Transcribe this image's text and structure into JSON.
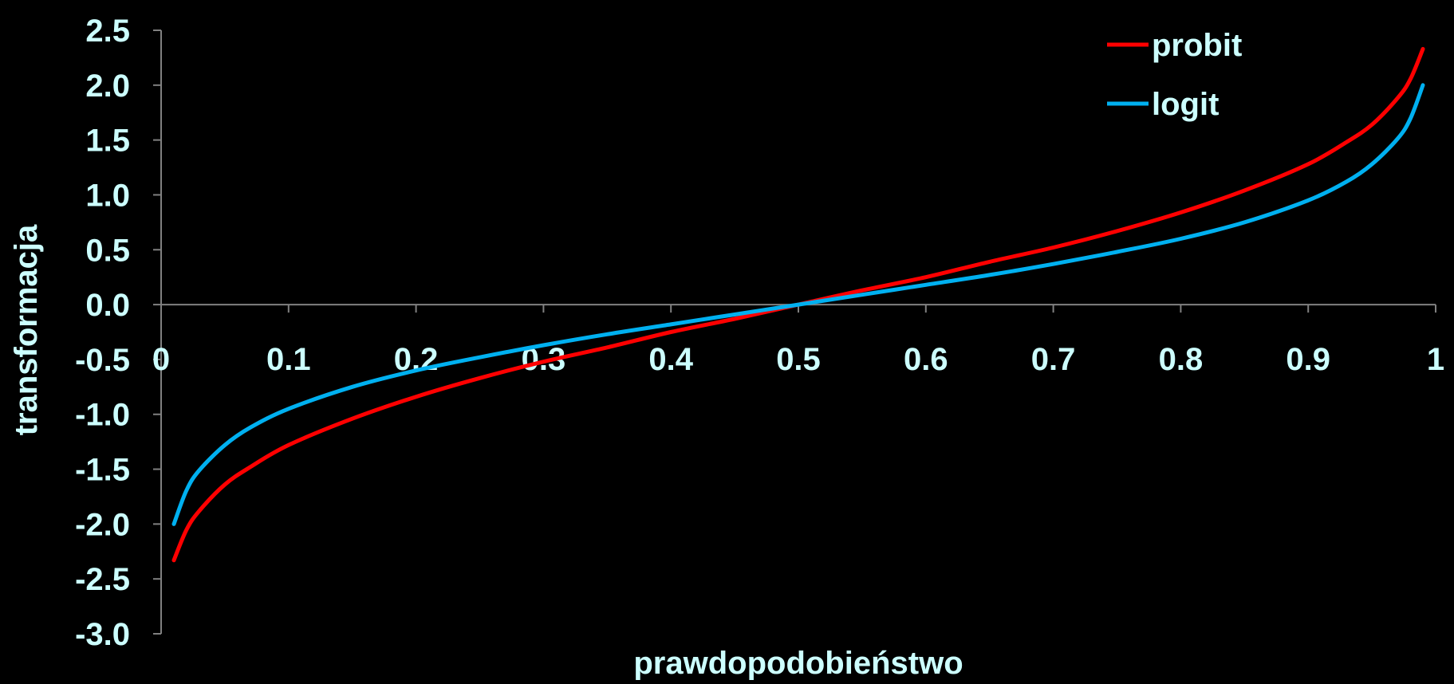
{
  "chart_data": {
    "type": "line",
    "title": "",
    "xlabel": "prawdopodobieństwo",
    "ylabel": "transformacja",
    "xlim": [
      0,
      1
    ],
    "ylim": [
      -3.0,
      2.5
    ],
    "x_ticks": [
      "0",
      "0.1",
      "0.2",
      "0.3",
      "0.4",
      "0.5",
      "0.6",
      "0.7",
      "0.8",
      "0.9",
      "1"
    ],
    "y_ticks": [
      "2.5",
      "2.0",
      "1.5",
      "1.0",
      "0.5",
      "0.0",
      "-0.5",
      "-1.0",
      "-1.5",
      "-2.0",
      "-2.5",
      "-3.0"
    ],
    "grid": false,
    "legend_position": "top-right",
    "x": [
      0.01,
      0.02,
      0.03,
      0.05,
      0.07,
      0.1,
      0.15,
      0.2,
      0.25,
      0.3,
      0.35,
      0.4,
      0.45,
      0.5,
      0.55,
      0.6,
      0.65,
      0.7,
      0.75,
      0.8,
      0.85,
      0.9,
      0.93,
      0.95,
      0.97,
      0.98,
      0.99
    ],
    "series": [
      {
        "name": "probit",
        "color": "#ff0000",
        "values": [
          -2.33,
          -2.05,
          -1.88,
          -1.64,
          -1.48,
          -1.28,
          -1.04,
          -0.84,
          -0.67,
          -0.52,
          -0.39,
          -0.25,
          -0.13,
          0.0,
          0.13,
          0.25,
          0.39,
          0.52,
          0.67,
          0.84,
          1.04,
          1.28,
          1.48,
          1.64,
          1.88,
          2.05,
          2.33
        ]
      },
      {
        "name": "logit",
        "color": "#00b0f0",
        "values": [
          -2.0,
          -1.69,
          -1.51,
          -1.28,
          -1.12,
          -0.95,
          -0.75,
          -0.6,
          -0.48,
          -0.37,
          -0.27,
          -0.18,
          -0.09,
          0.0,
          0.09,
          0.18,
          0.27,
          0.37,
          0.48,
          0.6,
          0.75,
          0.95,
          1.12,
          1.28,
          1.51,
          1.69,
          2.0
        ]
      }
    ]
  },
  "colors": {
    "background": "#000000",
    "text": "#ccffff",
    "axis": "#808080"
  }
}
